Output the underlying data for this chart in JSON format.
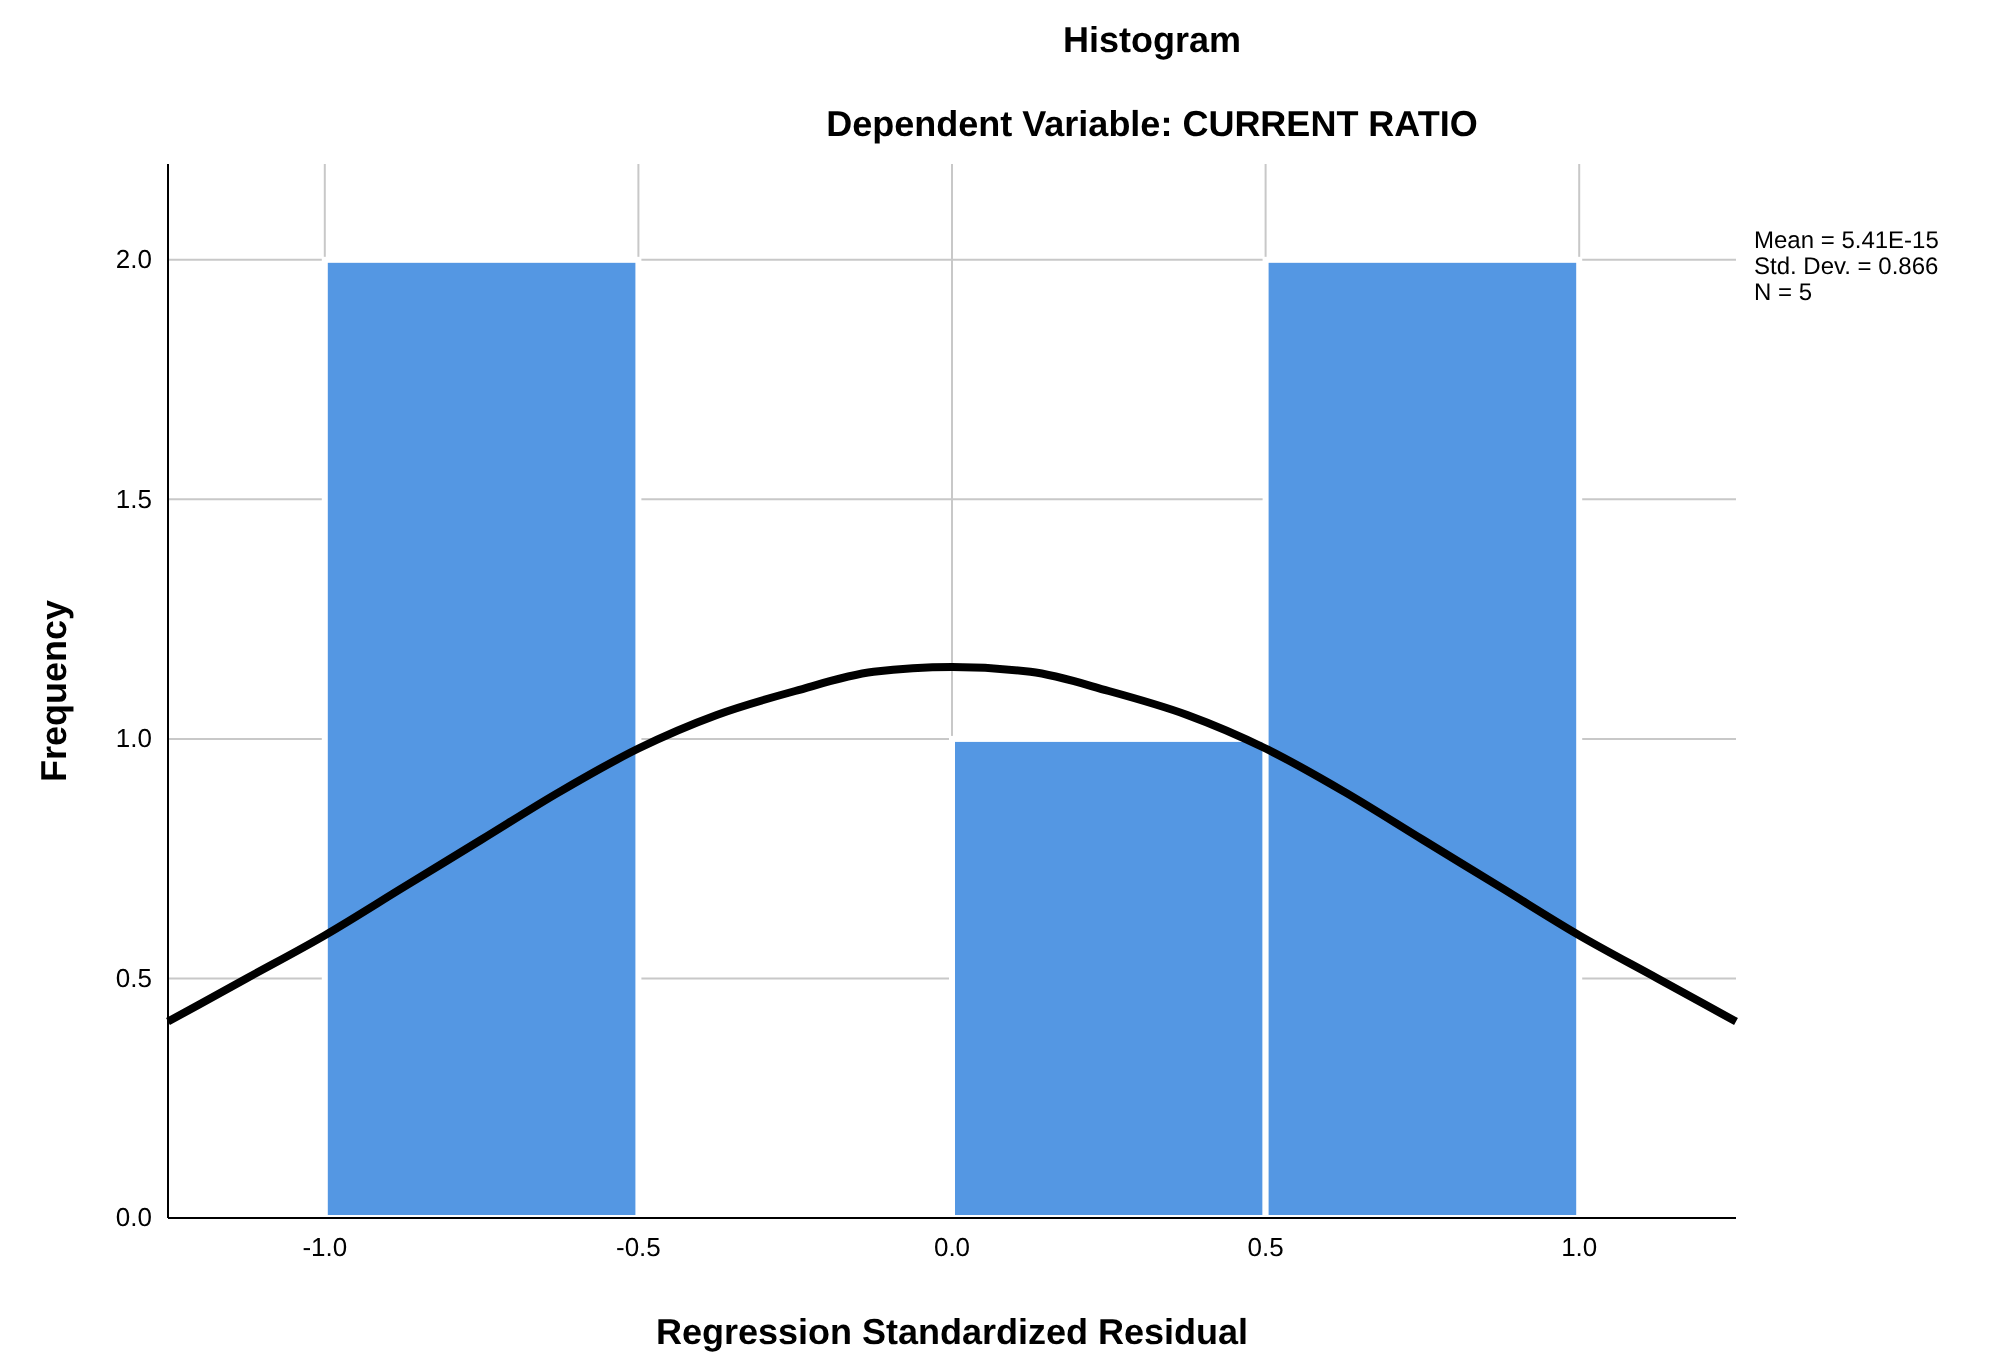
{
  "chart_data": {
    "type": "histogram",
    "title": "Histogram",
    "subtitle": "Dependent Variable: CURRENT RATIO",
    "xlabel": "Regression Standardized Residual",
    "ylabel": "Frequency",
    "bins": [
      -1,
      -0.5,
      0,
      0.5,
      1
    ],
    "values": [
      2,
      0,
      1,
      2
    ],
    "color": "#5497e3",
    "series": [
      {
        "type": "line",
        "color": "#000000",
        "x": [
          -1.25,
          -1.125,
          -1,
          -0.875,
          -0.75,
          -0.625,
          -0.5,
          -0.375,
          -0.25,
          -0.125,
          0,
          0.125,
          0.25,
          0.375,
          0.5,
          0.625,
          0.75,
          0.875,
          1,
          1.125,
          1.25
        ],
        "values": [
          0.41,
          0.5,
          0.59,
          0.69,
          0.79,
          0.89,
          0.98,
          1.05,
          1.1,
          1.14,
          1.15,
          1.14,
          1.1,
          1.05,
          0.98,
          0.89,
          0.79,
          0.69,
          0.59,
          0.5,
          0.41
        ]
      }
    ],
    "xlim": [
      -1.25,
      1.25
    ],
    "ylim": [
      0,
      2.2
    ],
    "xticks": [
      {
        "value": -1,
        "label": "-1.0"
      },
      {
        "value": -0.5,
        "label": "-0.5"
      },
      {
        "value": 0,
        "label": "0.0"
      },
      {
        "value": 0.5,
        "label": "0.5"
      },
      {
        "value": 1,
        "label": "1.0"
      }
    ],
    "yticks": [
      {
        "value": 0,
        "label": "0.0"
      },
      {
        "value": 0.5,
        "label": "0.5"
      },
      {
        "value": 1,
        "label": "1.0"
      },
      {
        "value": 1.5,
        "label": "1.5"
      },
      {
        "value": 2,
        "label": "2.0"
      }
    ],
    "grid": true,
    "annotations": [
      "Mean = 5.41E-15",
      "Std. Dev. = 0.866",
      "N = 5"
    ]
  }
}
